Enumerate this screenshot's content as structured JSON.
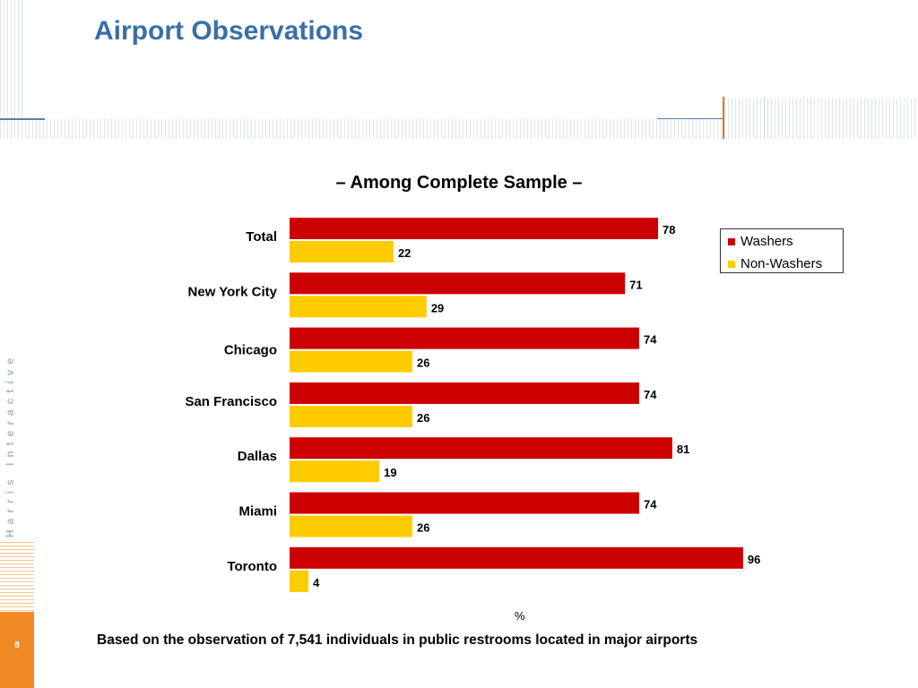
{
  "header": {
    "title": "Airport Observations"
  },
  "side": {
    "brand": "Harris Interactive",
    "page_number": "8"
  },
  "footnote": "Based on the observation of 7,541 individuals in public restrooms located in major airports",
  "colors": {
    "washers": "#cc0000",
    "non_washers": "#ffcc00",
    "title": "#3a6fa6",
    "accent": "#f08a24"
  },
  "chart_data": {
    "type": "bar",
    "orientation": "horizontal",
    "title": "– Among Complete Sample –",
    "xlabel": "%",
    "xlim": [
      0,
      100
    ],
    "grid": false,
    "legend_position": "top-right",
    "categories": [
      "Total",
      "New York City",
      "Chicago",
      "San Francisco",
      "Dallas",
      "Miami",
      "Toronto"
    ],
    "series": [
      {
        "name": "Washers",
        "values": [
          78,
          71,
          74,
          74,
          81,
          74,
          96
        ]
      },
      {
        "name": "Non-Washers",
        "values": [
          22,
          29,
          26,
          26,
          19,
          26,
          4
        ]
      }
    ]
  }
}
